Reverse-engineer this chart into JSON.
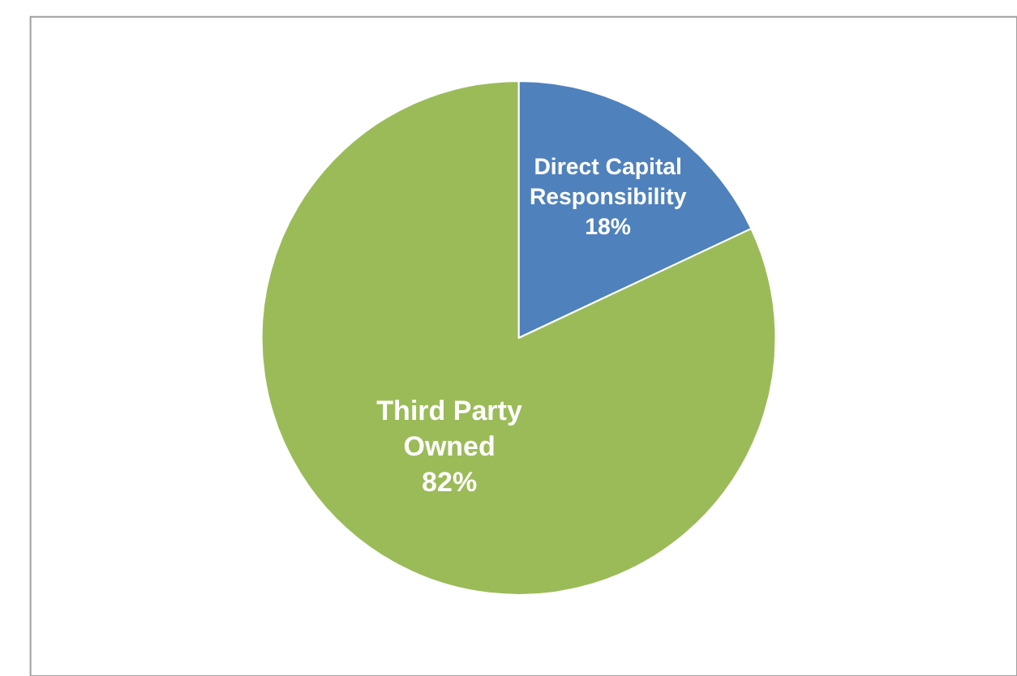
{
  "chart_data": {
    "type": "pie",
    "categories": [
      "Direct Capital Responsibility",
      "Third Party Owned"
    ],
    "values": [
      18,
      82
    ],
    "value_labels": [
      "18%",
      "82%"
    ],
    "colors": [
      "#4f81bd",
      "#9bbb59"
    ],
    "legend": false
  }
}
